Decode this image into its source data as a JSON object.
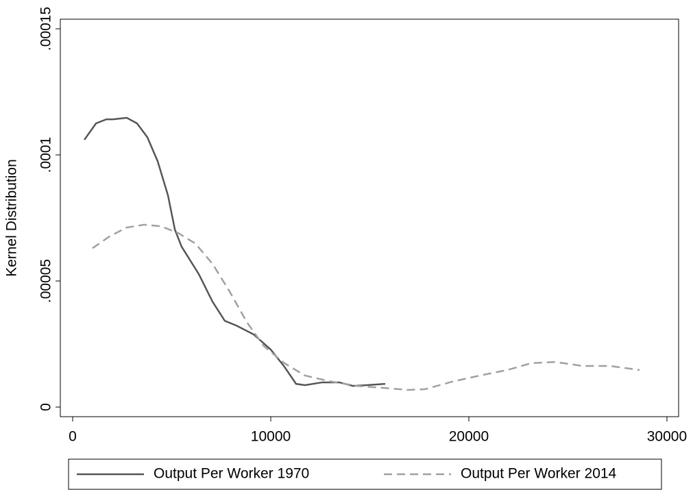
{
  "chart_data": {
    "type": "line",
    "y_label": "Kernel Distribution",
    "xlim": [
      -623,
      30590
    ],
    "ylim": [
      -3.8e-06,
      0.0001538
    ],
    "xticks": [
      0,
      10000,
      20000,
      30000
    ],
    "yticks": [
      0,
      {
        "value": 5e-05,
        "label": ".00005"
      },
      {
        "value": 0.0001,
        "label": ".0001"
      },
      {
        "value": 0.00015,
        "label": ".00015"
      }
    ],
    "grid": false,
    "legend": "bottom",
    "series": [
      {
        "name": "Output Per Worker 1970",
        "color": "#555555",
        "dash": false,
        "x": [
          590,
          1180,
          1700,
          2040,
          2730,
          3250,
          3770,
          4290,
          4810,
          5160,
          5500,
          6370,
          7060,
          7680,
          8270,
          9140,
          10000,
          10690,
          11280,
          11730,
          12600,
          13460,
          14150,
          14840,
          15780
        ],
        "values": [
          0.000106,
          0.0001125,
          0.0001141,
          0.0001141,
          0.0001147,
          0.0001125,
          0.000107,
          9.75e-05,
          8.4e-05,
          7.04e-05,
          6.36e-05,
          5.27e-05,
          4.18e-05,
          3.42e-05,
          3.23e-05,
          2.88e-05,
          2.28e-05,
          1.6e-05,
          9.2e-06,
          8.7e-06,
          9.8e-06,
          9.8e-06,
          8.4e-06,
          8.7e-06,
          9.2e-06
        ]
      },
      {
        "name": "Output Per Worker 2014",
        "color": "#a0a0a0",
        "dash": true,
        "x": [
          1000,
          1870,
          2730,
          3600,
          4460,
          5330,
          6190,
          7060,
          7920,
          8790,
          9650,
          10690,
          11730,
          12940,
          14330,
          15710,
          16920,
          17790,
          19170,
          20550,
          21940,
          23150,
          24360,
          25740,
          27130,
          28620
        ],
        "values": [
          6.3e-05,
          6.77e-05,
          7.12e-05,
          7.23e-05,
          7.17e-05,
          6.9e-05,
          6.49e-05,
          5.68e-05,
          4.59e-05,
          3.37e-05,
          2.42e-05,
          1.74e-05,
          1.25e-05,
          1.03e-05,
          8.4e-06,
          7.6e-06,
          6.8e-06,
          7.1e-06,
          1.01e-05,
          1.25e-05,
          1.47e-05,
          1.74e-05,
          1.79e-05,
          1.63e-05,
          1.63e-05,
          1.47e-05
        ]
      }
    ]
  }
}
